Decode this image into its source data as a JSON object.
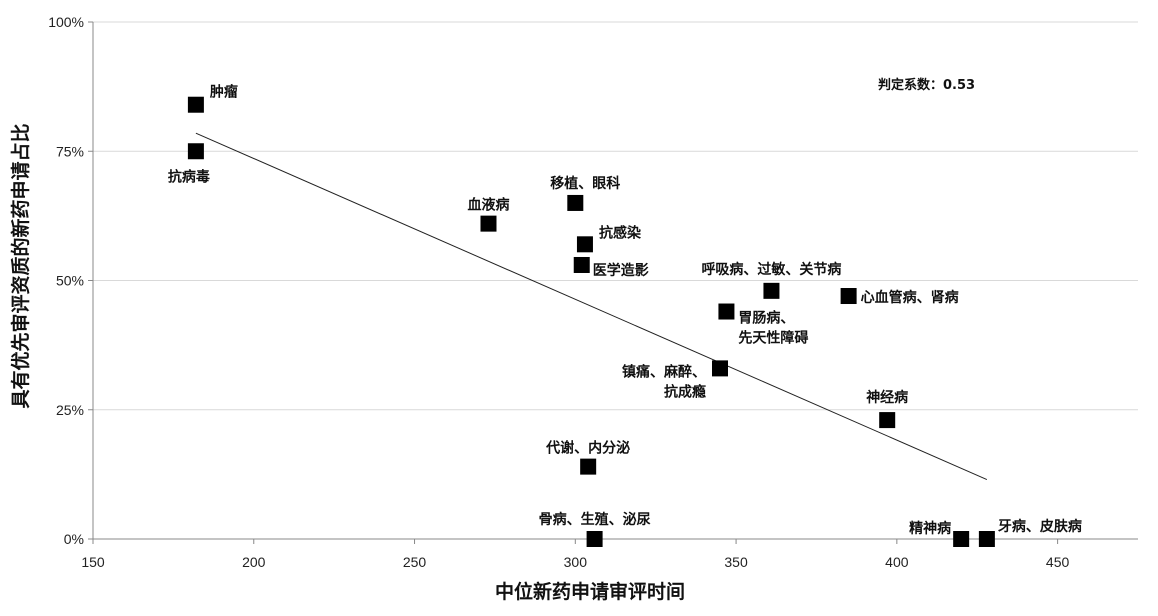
{
  "chart_data": {
    "type": "scatter",
    "xlabel": "中位新药申请审评时间",
    "ylabel": "具有优先审评资质的新药申请占比",
    "xlim": [
      150,
      475
    ],
    "ylim": [
      0,
      100
    ],
    "x_ticks": [
      "150",
      "200",
      "250",
      "300",
      "350",
      "400",
      "450"
    ],
    "y_ticks": [
      "0%",
      "25%",
      "50%",
      "75%",
      "100%"
    ],
    "grid": "horizontal",
    "annotation": "判定系数：0.53",
    "trendline": {
      "x": [
        182,
        428
      ],
      "y": [
        78.5,
        11.5
      ]
    },
    "points": [
      {
        "label": [
          "肿瘤"
        ],
        "x": 182,
        "y": 84
      },
      {
        "label": [
          "抗病毒"
        ],
        "x": 182,
        "y": 75
      },
      {
        "label": [
          "血液病"
        ],
        "x": 273,
        "y": 61
      },
      {
        "label": [
          "移植、眼科"
        ],
        "x": 300,
        "y": 65
      },
      {
        "label": [
          "抗感染"
        ],
        "x": 303,
        "y": 57
      },
      {
        "label": [
          "医学造影"
        ],
        "x": 302,
        "y": 53
      },
      {
        "label": [
          "呼吸病、过敏、关节病"
        ],
        "x": 361,
        "y": 48
      },
      {
        "label": [
          "心血管病、肾病"
        ],
        "x": 385,
        "y": 47
      },
      {
        "label": [
          "胃肠病、",
          "先天性障碍"
        ],
        "x": 347,
        "y": 44
      },
      {
        "label": [
          "镇痛、麻醉、",
          "抗成瘾"
        ],
        "x": 345,
        "y": 33
      },
      {
        "label": [
          "神经病"
        ],
        "x": 397,
        "y": 23
      },
      {
        "label": [
          "代谢、内分泌"
        ],
        "x": 304,
        "y": 14
      },
      {
        "label": [
          "骨病、生殖、泌尿"
        ],
        "x": 306,
        "y": 0
      },
      {
        "label": [
          "精神病"
        ],
        "x": 420,
        "y": 0
      },
      {
        "label": [
          "牙病、皮肤病"
        ],
        "x": 428,
        "y": 0
      }
    ]
  }
}
